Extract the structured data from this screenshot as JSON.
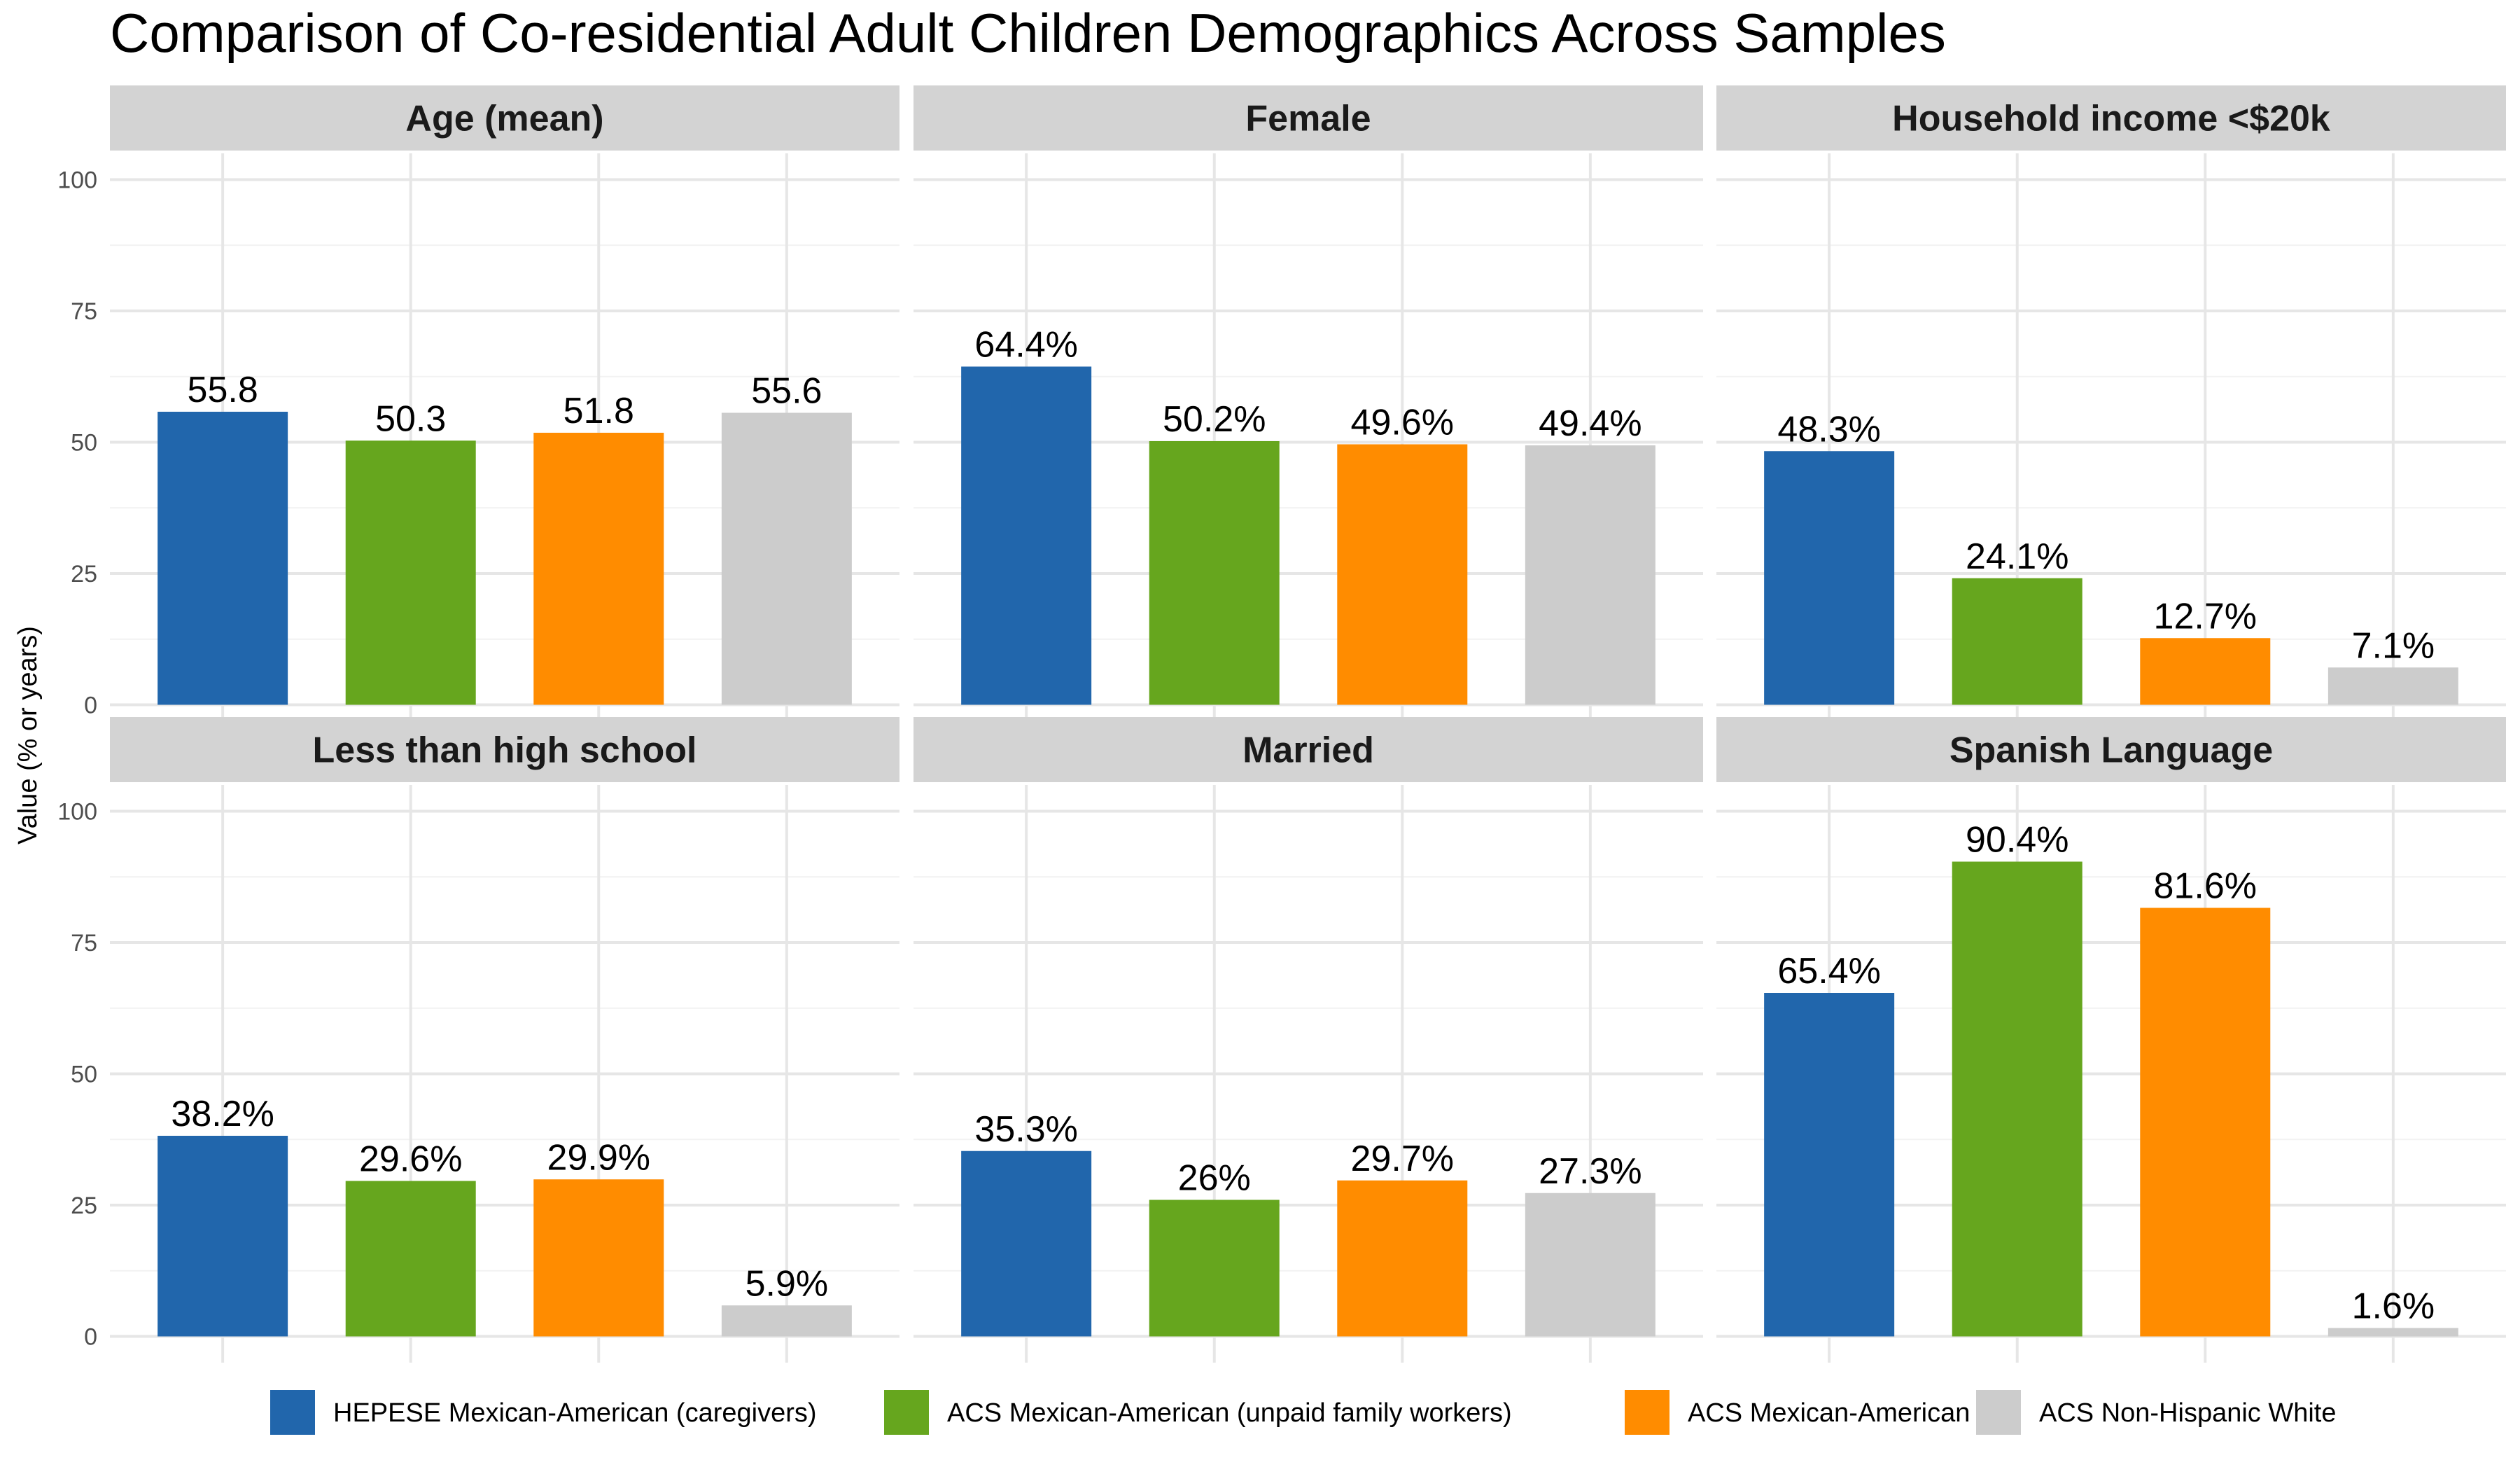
{
  "chart_data": {
    "type": "bar",
    "layout": "facet-grid",
    "title": "Comparison of Co-residential Adult Children Demographics Across Samples",
    "ylabel": "Value (% or years)",
    "ylim": [
      0,
      100
    ],
    "yticks": [
      0,
      25,
      50,
      75,
      100
    ],
    "grid": true,
    "legend_position": "bottom",
    "series": [
      {
        "name": "HEPESE Mexican-American (caregivers)",
        "color": "#2166AC"
      },
      {
        "name": "ACS Mexican-American (unpaid family workers)",
        "color": "#66A61E"
      },
      {
        "name": "ACS Mexican-American",
        "color": "#FF8C00"
      },
      {
        "name": "ACS Non-Hispanic White",
        "color": "#CCCCCC"
      }
    ],
    "panels": [
      {
        "title": "Age (mean)",
        "values": [
          55.8,
          50.3,
          51.8,
          55.6
        ],
        "labels": [
          "55.8",
          "50.3",
          "51.8",
          "55.6"
        ]
      },
      {
        "title": "Female",
        "values": [
          64.4,
          50.2,
          49.6,
          49.4
        ],
        "labels": [
          "64.4%",
          "50.2%",
          "49.6%",
          "49.4%"
        ]
      },
      {
        "title": "Household income <$20k",
        "values": [
          48.3,
          24.1,
          12.7,
          7.1
        ],
        "labels": [
          "48.3%",
          "24.1%",
          "12.7%",
          "7.1%"
        ]
      },
      {
        "title": "Less than high school",
        "values": [
          38.2,
          29.6,
          29.9,
          5.9
        ],
        "labels": [
          "38.2%",
          "29.6%",
          "29.9%",
          "5.9%"
        ]
      },
      {
        "title": "Married",
        "values": [
          35.3,
          26,
          29.7,
          27.3
        ],
        "labels": [
          "35.3%",
          "26%",
          "29.7%",
          "27.3%"
        ]
      },
      {
        "title": "Spanish Language",
        "values": [
          65.4,
          90.4,
          81.6,
          1.6
        ],
        "labels": [
          "65.4%",
          "90.4%",
          "81.6%",
          "1.6%"
        ]
      }
    ]
  }
}
